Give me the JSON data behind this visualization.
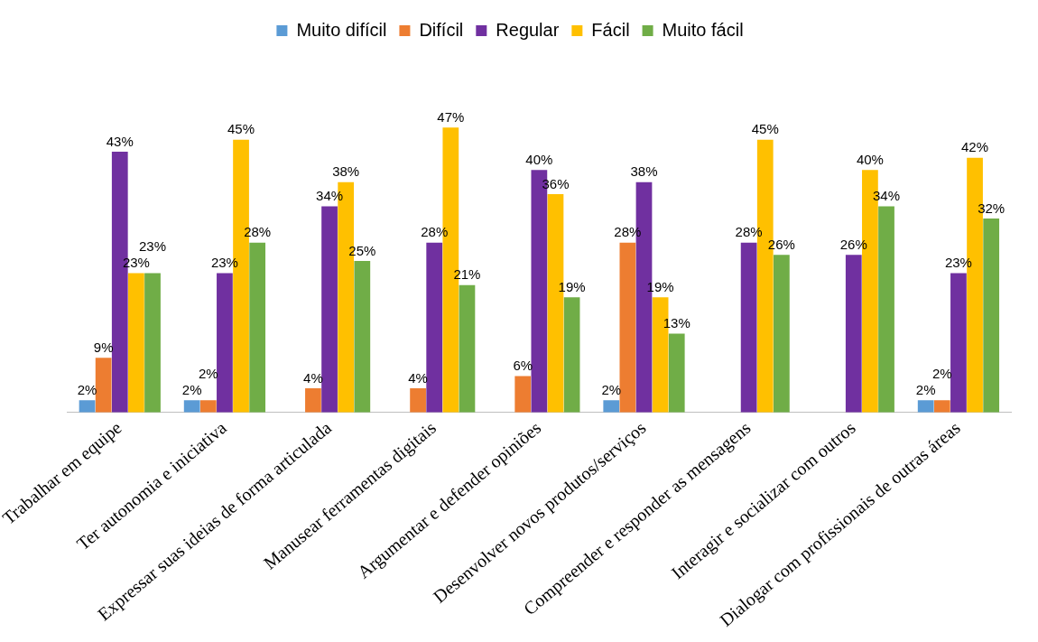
{
  "chart_data": {
    "type": "bar",
    "categories": [
      "Trabalhar em equipe",
      "Ter autonomia e iniciativa",
      "Expressar suas ideias de forma articulada",
      "Manusear ferramentas digitais",
      "Argumentar e defender opiniões",
      "Desenvolver novos produtos/serviços",
      "Compreender e responder as mensagens",
      "Interagir e socializar com outros",
      "Dialogar com profissionais de outras áreas"
    ],
    "series": [
      {
        "name": "Muito difícil",
        "color": "#5b9bd5",
        "values": [
          2,
          2,
          0,
          0,
          0,
          2,
          0,
          0,
          2
        ],
        "value_labels": [
          "2%",
          "2%",
          null,
          null,
          null,
          "2%",
          null,
          null,
          "2%"
        ]
      },
      {
        "name": "Difícil",
        "color": "#ed7d31",
        "values": [
          9,
          2,
          4,
          4,
          6,
          28,
          0,
          0,
          2
        ],
        "value_labels": [
          "9%",
          "2%",
          "4%",
          "4%",
          "6%",
          "28%",
          null,
          null,
          "2%"
        ]
      },
      {
        "name": "Regular",
        "color": "#7030a0",
        "values": [
          43,
          23,
          34,
          28,
          40,
          38,
          28,
          26,
          23
        ],
        "value_labels": [
          "43%",
          "23%",
          "34%",
          "28%",
          "40%",
          "38%",
          "28%",
          "26%",
          "23%"
        ]
      },
      {
        "name": "Fácil",
        "color": "#ffc000",
        "values": [
          23,
          45,
          38,
          47,
          36,
          19,
          45,
          40,
          42
        ],
        "value_labels": [
          "23%",
          "45%",
          "38%",
          "47%",
          "36%",
          "19%",
          "45%",
          "40%",
          "42%"
        ]
      },
      {
        "name": "Muito fácil",
        "color": "#70ad47",
        "values": [
          23,
          28,
          25,
          21,
          19,
          13,
          26,
          34,
          32
        ],
        "value_labels": [
          "23%",
          "28%",
          "25%",
          "21%",
          "19%",
          "13%",
          "26%",
          "34%",
          "32%"
        ]
      }
    ],
    "tick_labels": "x",
    "legend": "top"
  }
}
